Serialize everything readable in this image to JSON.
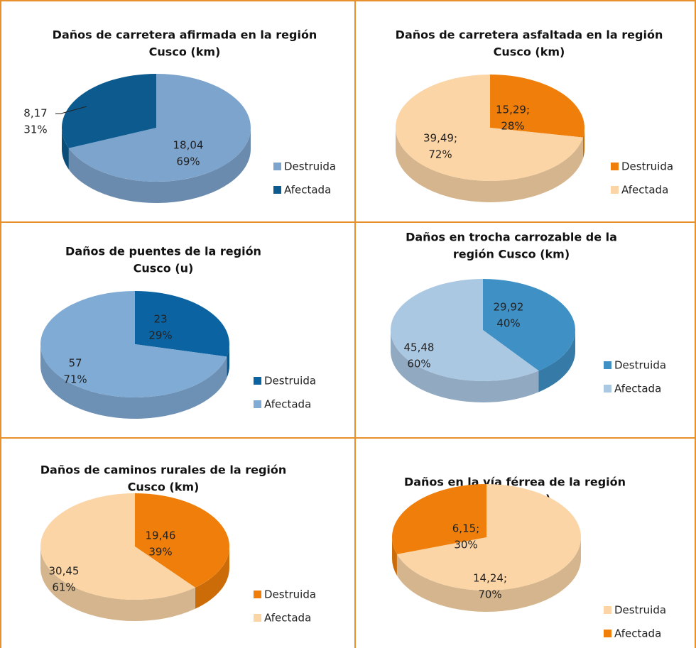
{
  "chart_data": [
    {
      "type": "pie",
      "title": [
        "Daños de carretera afirmada en la región",
        "Cusco (km)"
      ],
      "categories": [
        "Destruida",
        "Afectada"
      ],
      "values": [
        18.04,
        8.17
      ],
      "value_labels": [
        "18,04",
        "8,17"
      ],
      "percents": [
        69,
        31
      ],
      "percent_labels": [
        "69%",
        "31%"
      ],
      "colors": [
        "#7da4cd",
        "#0d5a8e"
      ]
    },
    {
      "type": "pie",
      "title": [
        "Daños de carretera asfaltada en la región",
        "Cusco (km)"
      ],
      "categories": [
        "Destruida",
        "Afectada"
      ],
      "values": [
        15.29,
        39.49
      ],
      "value_labels": [
        "15,29;",
        "39,49;"
      ],
      "percents": [
        28,
        72
      ],
      "percent_labels": [
        "28%",
        "72%"
      ],
      "colors": [
        "#ef7f0a",
        "#fbd5a6"
      ]
    },
    {
      "type": "pie",
      "title": [
        "Daños de puentes de la región",
        "Cusco (u)"
      ],
      "categories": [
        "Destruida",
        "Afectada"
      ],
      "values": [
        23,
        57
      ],
      "percents": [
        29,
        71
      ],
      "percent_labels": [
        "29%",
        "71%"
      ],
      "colors": [
        "#0b63a1",
        "#80abd5"
      ]
    },
    {
      "type": "pie",
      "title": [
        "Daños en trocha carrozable de la",
        "región Cusco (km)"
      ],
      "categories": [
        "Destruida",
        "Afectada"
      ],
      "values": [
        29.92,
        45.48
      ],
      "value_labels": [
        "29,92",
        "45,48"
      ],
      "percents": [
        40,
        60
      ],
      "percent_labels": [
        "40%",
        "60%"
      ],
      "colors": [
        "#3f90c5",
        "#abc8e3"
      ]
    },
    {
      "type": "pie",
      "title": [
        "Daños de caminos rurales de la región",
        "Cusco (km)"
      ],
      "categories": [
        "Destruida",
        "Afectada"
      ],
      "values": [
        19.46,
        30.45
      ],
      "value_labels": [
        "19,46",
        "30,45"
      ],
      "percents": [
        39,
        61
      ],
      "percent_labels": [
        "39%",
        "61%"
      ],
      "colors": [
        "#ef7f0a",
        "#fbd5a6"
      ]
    },
    {
      "type": "pie",
      "title": [
        "Daños en la vía férrea de la región",
        "Cusco (km)"
      ],
      "categories": [
        "Destruida",
        "Afectada"
      ],
      "values": [
        14.24,
        6.15
      ],
      "value_labels": [
        "14,24;",
        "6,15;"
      ],
      "percents": [
        70,
        30
      ],
      "percent_labels": [
        "70%",
        "30%"
      ],
      "colors": [
        "#fbd5a6",
        "#ef7f0a"
      ]
    }
  ]
}
